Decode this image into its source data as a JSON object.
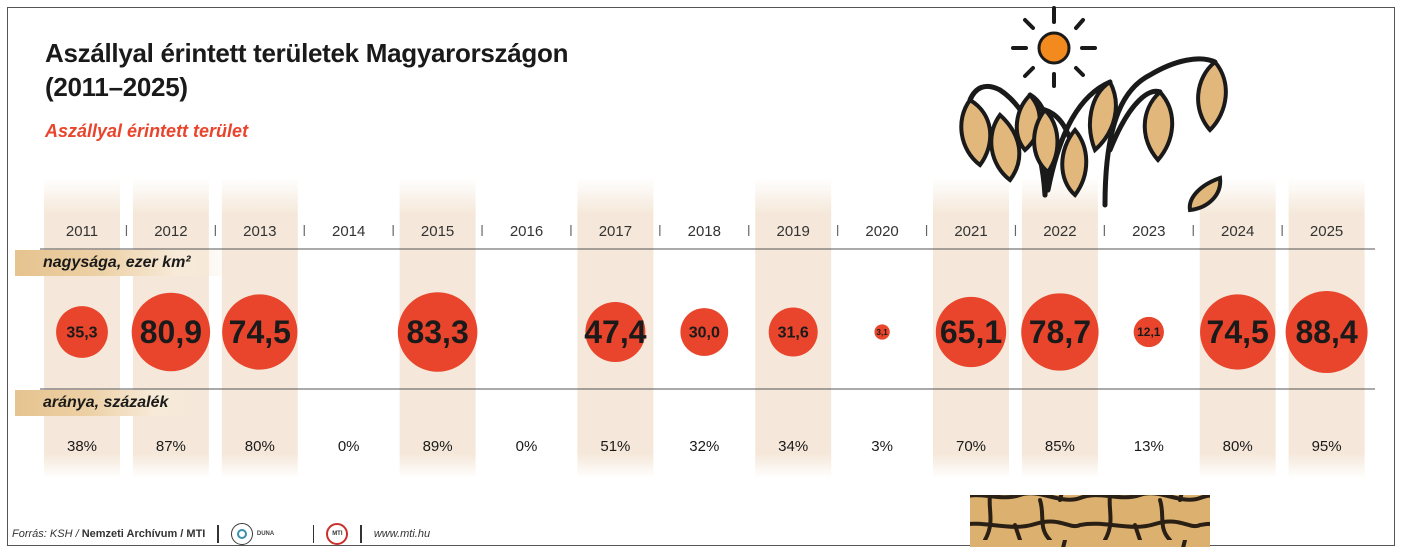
{
  "title": {
    "line1": "Aszállyal érintett területek Magyarországon",
    "line2": "(2011–2025)"
  },
  "subtitle": "Aszállyal érintett terület",
  "labels": {
    "size": "nagysága, ezer km²",
    "share": "aránya, százalék"
  },
  "footer": {
    "source_prefix": "Forrás: KSH /",
    "source_bold": "Nemzeti Archívum / MTI",
    "duna_logo_text": "DUNA",
    "url": "www.mti.hu"
  },
  "colors": {
    "circle": "#e8452c",
    "band": "#f3e4d3",
    "tag": "#e6c38f",
    "sun": "#f28a1e",
    "leaf": "#e2b77c",
    "ground": "#dcb06f"
  },
  "icons": [
    "sun-icon",
    "wilted-plant-icon",
    "cracked-ground-icon",
    "duna-logo-icon",
    "mti-logo-icon"
  ],
  "chart_data": {
    "type": "bubble-table",
    "categories": [
      "2011",
      "2012",
      "2013",
      "2014",
      "2015",
      "2016",
      "2017",
      "2018",
      "2019",
      "2020",
      "2021",
      "2022",
      "2023",
      "2024",
      "2025"
    ],
    "series": [
      {
        "name": "nagysága, ezer km²",
        "values": [
          35.3,
          80.9,
          74.5,
          null,
          83.3,
          null,
          47.4,
          30.0,
          31.6,
          3.1,
          65.1,
          78.7,
          12.1,
          74.5,
          88.4
        ],
        "labels": [
          "35,3",
          "80,9",
          "74,5",
          "",
          "83,3",
          "",
          "47,4",
          "30,0",
          "31,6",
          "3,1",
          "65,1",
          "78,7",
          "12,1",
          "74,5",
          "88,4"
        ]
      },
      {
        "name": "aránya, százalék",
        "values": [
          38,
          87,
          80,
          0,
          89,
          0,
          51,
          32,
          34,
          3,
          70,
          85,
          13,
          80,
          95
        ],
        "labels": [
          "38%",
          "87%",
          "80%",
          "0%",
          "89%",
          "0%",
          "51%",
          "32%",
          "34%",
          "3%",
          "70%",
          "85%",
          "13%",
          "80%",
          "95%"
        ]
      }
    ],
    "highlighted_categories": [
      "2011",
      "2012",
      "2013",
      "2015",
      "2017",
      "2019",
      "2021",
      "2022",
      "2024",
      "2025"
    ],
    "value_max": 88.4
  }
}
